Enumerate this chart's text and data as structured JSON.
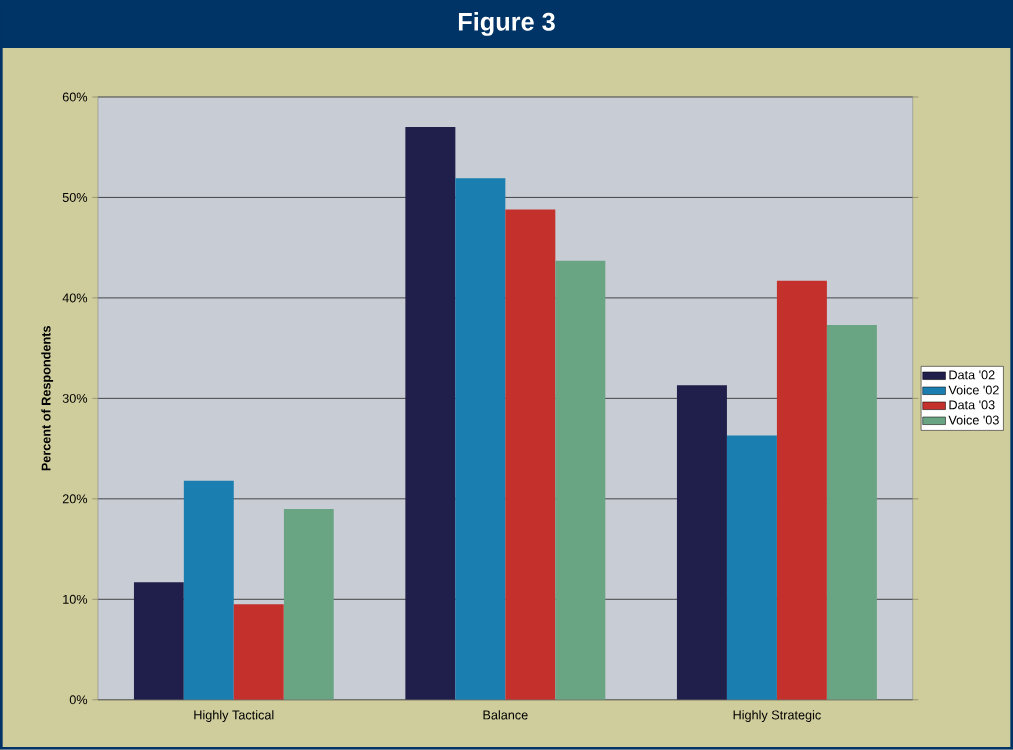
{
  "chart_data": {
    "type": "bar",
    "title": "Figure 3",
    "ylabel": "Percent of Respondents",
    "categories": [
      "Highly Tactical",
      "Balance",
      "Highly Strategic"
    ],
    "series": [
      {
        "name": "Data '02",
        "color": "#201e4b",
        "values": [
          11.7,
          57.0,
          31.3
        ]
      },
      {
        "name": "Voice '02",
        "color": "#1a7fb0",
        "values": [
          21.8,
          51.9,
          26.3
        ]
      },
      {
        "name": "Data '03",
        "color": "#c4312c",
        "values": [
          9.5,
          48.8,
          41.7
        ]
      },
      {
        "name": "Voice '03",
        "color": "#6aa583",
        "values": [
          19.0,
          43.7,
          37.3
        ]
      }
    ],
    "ylim": [
      0,
      60
    ],
    "yticks": [
      {
        "value": 0,
        "label": "0%"
      },
      {
        "value": 10,
        "label": "10%"
      },
      {
        "value": 20,
        "label": "20%"
      },
      {
        "value": 30,
        "label": "30%"
      },
      {
        "value": 40,
        "label": "40%"
      },
      {
        "value": 50,
        "label": "50%"
      },
      {
        "value": 60,
        "label": "60%"
      }
    ],
    "grid": "y",
    "legend": "right"
  }
}
